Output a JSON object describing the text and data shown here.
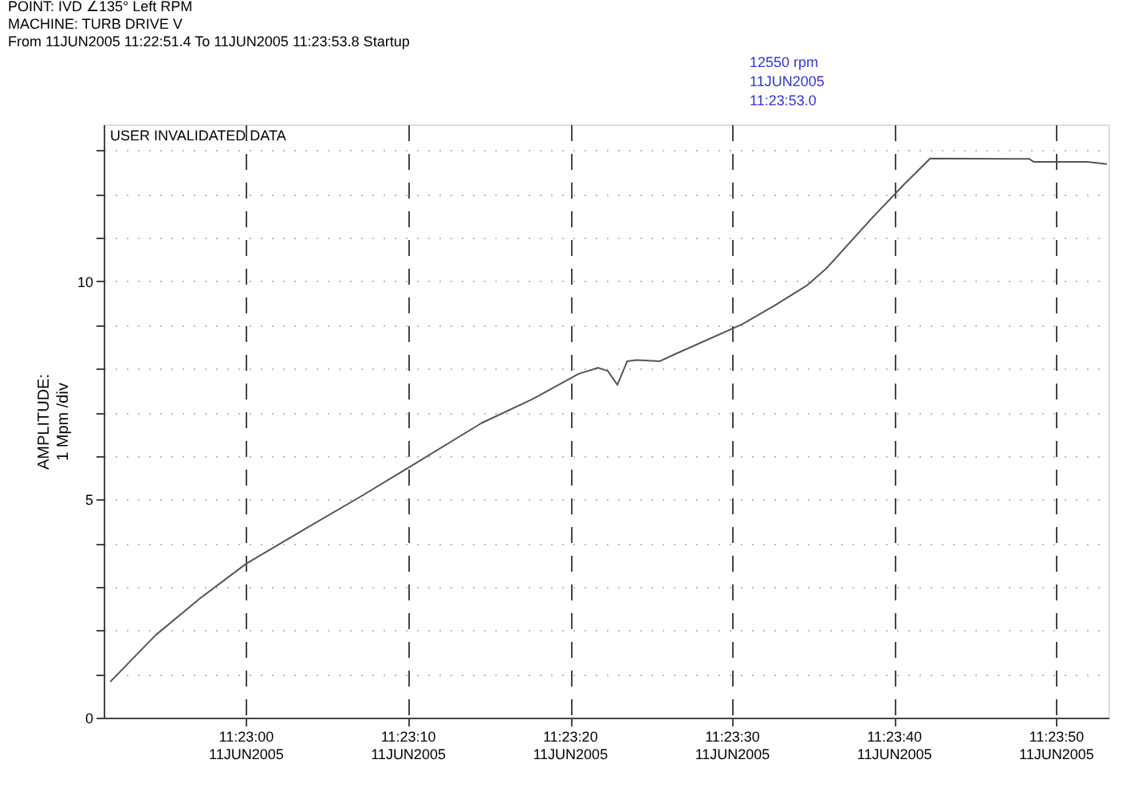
{
  "chart_data": {
    "type": "line",
    "title": "POINT: IVD  ∠135° Left      RPM\nMACHINE: TURB DRIVE V\nFrom 11JUN2005 11:22:51.4 To 11JUN2005 11:23:53.8 Startup",
    "ylabel": "AMPLITUDE:\n1 Mpm /div",
    "annotations": [
      "USER INVALIDATED DATA",
      "12550 rpm",
      "11JUN2005",
      "11:23:53.0"
    ],
    "x": [
      "2005-06-11T11:22:51.6",
      "2005-06-11T11:22:54.4",
      "2005-06-11T11:22:57.2",
      "2005-06-11T11:23:00.0",
      "2005-06-11T11:23:03.6",
      "2005-06-11T11:23:07.2",
      "2005-06-11T11:23:10.4",
      "2005-06-11T11:23:14.5",
      "2005-06-11T11:23:17.7",
      "2005-06-11T11:23:20.5",
      "2005-06-11T11:23:21.7",
      "2005-06-11T11:23:22.3",
      "2005-06-11T11:23:22.9",
      "2005-06-11T11:23:23.5",
      "2005-06-11T11:23:24.1",
      "2005-06-11T11:23:25.5",
      "2005-06-11T11:23:26.5",
      "2005-06-11T11:23:30.6",
      "2005-06-11T11:23:32.6",
      "2005-06-11T11:23:34.6",
      "2005-06-11T11:23:35.8",
      "2005-06-11T11:23:38.6",
      "2005-06-11T11:23:40.6",
      "2005-06-11T11:23:42.2",
      "2005-06-11T11:23:48.3",
      "2005-06-11T11:23:48.6",
      "2005-06-11T11:23:51.9",
      "2005-06-11T11:23:53.1"
    ],
    "series": [
      {
        "color": "#555555",
        "values": [
          0.82,
          1.89,
          2.75,
          3.53,
          4.32,
          5.1,
          5.82,
          6.75,
          7.31,
          7.88,
          8.02,
          7.95,
          7.63,
          8.17,
          8.2,
          8.17,
          8.34,
          9.02,
          9.45,
          9.91,
          10.3,
          11.45,
          12.23,
          12.82,
          12.81,
          12.74,
          12.74,
          12.69
        ]
      }
    ],
    "xlim": [
      "2005-06-11T11:22:51.2",
      "2005-06-11T11:23:53.2"
    ],
    "xticks": [
      {
        "value": "2005-06-11T11:23:00",
        "label": "11:23:00\n11JUN2005"
      },
      {
        "value": "2005-06-11T11:23:10",
        "label": "11:23:10\n11JUN2005"
      },
      {
        "value": "2005-06-11T11:23:20",
        "label": "11:23:20\n11JUN2005"
      },
      {
        "value": "2005-06-11T11:23:30",
        "label": "11:23:30\n11JUN2005"
      },
      {
        "value": "2005-06-11T11:23:40",
        "label": "11:23:40\n11JUN2005"
      },
      {
        "value": "2005-06-11T11:23:50",
        "label": "11:23:50\n11JUN2005"
      }
    ],
    "ylim": [
      0,
      13.6
    ],
    "yticks": [
      0,
      {
        "value": 1,
        "label": null
      },
      {
        "value": 2,
        "label": null
      },
      {
        "value": 3,
        "label": null
      },
      {
        "value": 4,
        "label": null
      },
      5,
      {
        "value": 6,
        "label": null
      },
      {
        "value": 7,
        "label": null
      },
      {
        "value": 8,
        "label": null
      },
      {
        "value": 9,
        "label": null
      },
      10,
      {
        "value": 11,
        "label": null
      },
      {
        "value": 12,
        "label": null
      },
      {
        "value": 13,
        "label": null
      }
    ],
    "grid": true,
    "marker": "none",
    "line_style": "solid"
  }
}
